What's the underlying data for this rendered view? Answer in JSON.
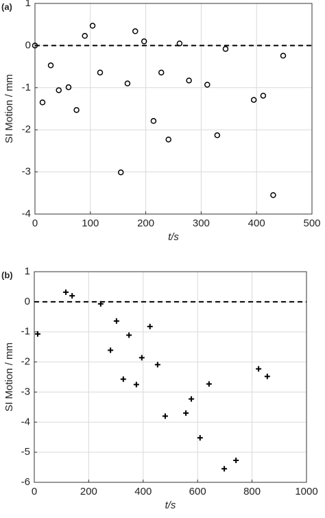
{
  "chart_data": [
    {
      "type": "scatter",
      "title": "(a)",
      "xlabel": "t/s",
      "ylabel": "SI Motion / mm",
      "marker": "o",
      "color": "#000000",
      "grid": true,
      "hline": 0,
      "xlim": [
        0,
        500
      ],
      "xticks": [
        0,
        100,
        200,
        300,
        400,
        500
      ],
      "ylim": [
        -4,
        1
      ],
      "yticks": [
        1,
        0,
        -1,
        -2,
        -3,
        -4
      ],
      "x": [
        0,
        13.6,
        28.5,
        43,
        60.6,
        75,
        90,
        104,
        117.6,
        155,
        167,
        181,
        197,
        214,
        228,
        241,
        261,
        278,
        311,
        329,
        344,
        395,
        412,
        430,
        448
      ],
      "values": [
        0,
        -1.35,
        -0.47,
        -1.06,
        -0.99,
        -1.53,
        0.23,
        0.47,
        -0.64,
        -3.01,
        -0.9,
        0.34,
        0.1,
        -1.79,
        -0.64,
        -2.23,
        0.05,
        -0.83,
        -0.93,
        -2.13,
        -0.08,
        -1.29,
        -1.19,
        -3.55,
        -0.24
      ]
    },
    {
      "type": "scatter",
      "title": "(b)",
      "xlabel": "t/s",
      "ylabel": "SI Motion / mm",
      "marker": "+",
      "color": "#000000",
      "grid": true,
      "hline": 0,
      "xlim": [
        0,
        1000
      ],
      "xticks": [
        0,
        200,
        400,
        600,
        800,
        1000
      ],
      "ylim": [
        -6,
        1
      ],
      "yticks": [
        1,
        0,
        -1,
        -2,
        -3,
        -4,
        -5,
        -6
      ],
      "x": [
        12.6,
        116,
        139,
        244,
        302,
        280,
        348,
        327,
        375,
        395,
        425,
        453,
        481,
        557,
        577,
        609,
        642,
        698,
        741,
        824,
        856
      ],
      "values": [
        -1.07,
        0.32,
        0.2,
        -0.07,
        -0.64,
        -1.61,
        -1.11,
        -2.57,
        -2.75,
        -1.86,
        -0.82,
        -2.09,
        -3.8,
        -3.7,
        -3.23,
        -4.52,
        -2.73,
        -5.55,
        -5.27,
        -2.23,
        -2.48
      ]
    }
  ]
}
